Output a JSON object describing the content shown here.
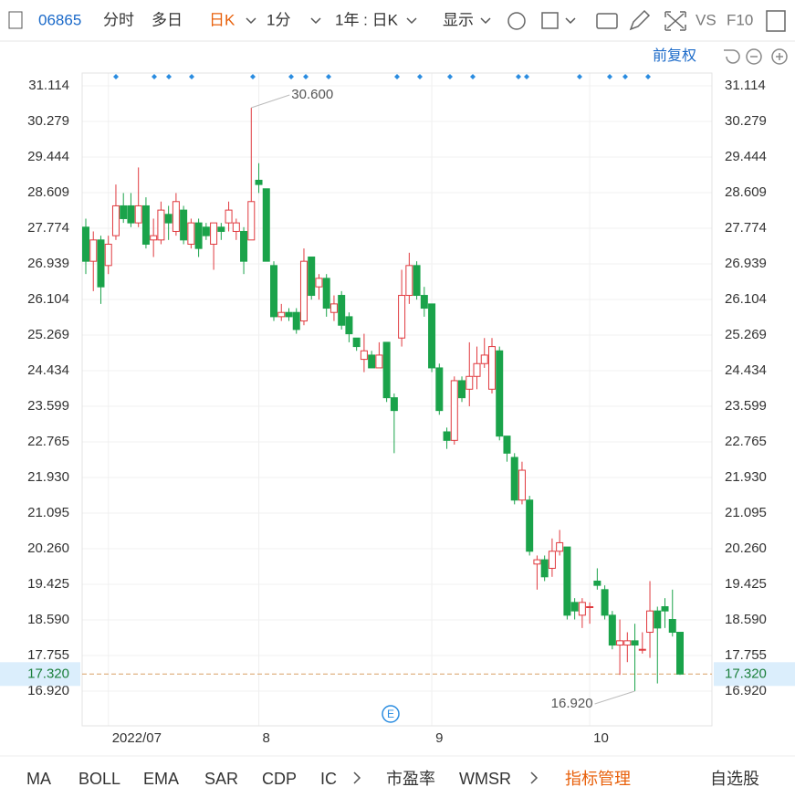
{
  "toolbar": {
    "code": "06865",
    "items": [
      "分时",
      "多日",
      "日K",
      "1分",
      "1年 : 日K",
      "显示",
      "VS",
      "F10"
    ],
    "adjust": "前复权"
  },
  "indicators": [
    "MA",
    "BOLL",
    "EMA",
    "SAR",
    "CDP",
    "IC",
    "市盈率",
    "WMSR",
    "指标管理",
    "自选股"
  ],
  "chart_data": {
    "type": "candlestick",
    "categories": [
      null,
      null,
      null,
      "2022/07",
      null,
      null,
      null,
      null,
      null,
      null,
      null,
      null,
      null,
      null,
      null,
      null,
      null,
      null,
      null,
      null,
      null,
      null,
      null,
      "8",
      null,
      null,
      null,
      null,
      null,
      null,
      null,
      null,
      null,
      null,
      null,
      null,
      null,
      null,
      null,
      null,
      null,
      null,
      null,
      null,
      null,
      null,
      "9",
      null,
      null,
      null,
      null,
      null,
      null,
      null,
      null,
      null,
      null,
      null,
      null,
      null,
      null,
      null,
      null,
      null,
      null,
      null,
      null,
      "10",
      null,
      null,
      null,
      null,
      null,
      null,
      null,
      null,
      null,
      null,
      null,
      null
    ],
    "open": [
      27.8,
      27.0,
      27.5,
      26.9,
      27.6,
      28.3,
      28.3,
      27.9,
      28.3,
      27.5,
      27.5,
      28.1,
      27.7,
      28.2,
      27.4,
      27.9,
      27.8,
      27.4,
      27.8,
      27.9,
      27.7,
      27.7,
      27.5,
      28.9,
      28.7,
      26.9,
      25.7,
      25.8,
      25.8,
      25.6,
      27.1,
      26.4,
      26.6,
      25.8,
      26.2,
      25.7,
      25.2,
      24.7,
      24.8,
      24.5,
      25.1,
      23.8,
      25.2,
      26.2,
      26.9,
      26.2,
      26.0,
      24.5,
      23.0,
      22.8,
      24.2,
      24.0,
      24.3,
      24.6,
      24.0,
      24.9,
      22.9,
      22.4,
      21.4,
      21.4,
      19.9,
      20.0,
      19.8,
      20.2,
      20.3,
      19.0,
      18.7,
      18.9,
      19.5,
      19.3,
      18.7,
      18.0,
      18.0,
      18.1,
      17.9,
      18.3,
      18.8,
      18.9,
      18.6,
      18.3
    ],
    "high": [
      28.0,
      27.7,
      27.6,
      27.6,
      28.8,
      28.6,
      28.6,
      29.2,
      28.5,
      28.0,
      28.4,
      28.3,
      28.6,
      28.3,
      28.0,
      28.0,
      27.9,
      27.9,
      27.9,
      28.4,
      28.0,
      27.8,
      30.6,
      29.3,
      28.7,
      27.0,
      26.0,
      25.9,
      25.9,
      27.3,
      27.1,
      26.7,
      26.7,
      26.2,
      26.3,
      25.8,
      25.2,
      25.3,
      24.9,
      25.1,
      25.1,
      23.9,
      26.8,
      27.2,
      27.0,
      26.4,
      26.0,
      24.6,
      23.1,
      24.3,
      24.3,
      25.1,
      25.0,
      25.2,
      25.2,
      25.0,
      22.9,
      22.5,
      22.3,
      21.5,
      20.1,
      20.1,
      20.5,
      20.7,
      20.3,
      19.1,
      19.1,
      19.0,
      19.8,
      19.4,
      18.8,
      18.6,
      18.3,
      18.5,
      18.3,
      19.5,
      18.9,
      19.1,
      19.3,
      18.3
    ],
    "low": [
      26.7,
      26.3,
      26.0,
      26.7,
      27.5,
      27.9,
      27.8,
      27.8,
      27.3,
      27.1,
      27.4,
      27.5,
      27.6,
      27.4,
      27.3,
      27.1,
      27.5,
      26.8,
      27.5,
      27.7,
      27.5,
      26.7,
      27.5,
      28.6,
      27.0,
      25.6,
      25.6,
      25.6,
      25.3,
      25.5,
      26.1,
      26.1,
      25.7,
      25.6,
      25.4,
      25.1,
      24.9,
      24.4,
      24.5,
      24.5,
      23.7,
      22.5,
      25.0,
      26.0,
      26.1,
      25.7,
      24.4,
      23.4,
      22.6,
      22.7,
      23.7,
      23.6,
      24.0,
      24.5,
      23.9,
      22.8,
      22.3,
      21.3,
      21.3,
      20.1,
      19.3,
      19.5,
      19.6,
      20.1,
      18.6,
      18.6,
      18.4,
      18.5,
      19.3,
      18.6,
      17.9,
      17.3,
      17.6,
      16.92,
      17.8,
      17.7,
      17.1,
      18.4,
      18.2,
      17.3
    ],
    "close": [
      27.0,
      27.5,
      26.4,
      27.4,
      28.3,
      28.0,
      27.9,
      28.3,
      27.4,
      27.6,
      28.2,
      27.9,
      28.4,
      27.5,
      27.9,
      27.3,
      27.6,
      27.9,
      27.7,
      28.2,
      27.9,
      27.0,
      28.4,
      28.8,
      27.0,
      25.7,
      25.8,
      25.7,
      25.4,
      27.0,
      26.2,
      26.6,
      25.9,
      26.0,
      25.5,
      25.3,
      25.0,
      24.9,
      24.5,
      24.8,
      23.8,
      23.5,
      26.2,
      26.9,
      26.2,
      25.9,
      24.5,
      23.5,
      22.8,
      24.2,
      23.8,
      24.3,
      24.6,
      24.8,
      25.0,
      22.9,
      22.5,
      21.4,
      22.1,
      20.2,
      20.0,
      19.6,
      20.2,
      20.4,
      18.7,
      18.8,
      19.0,
      18.9,
      19.4,
      18.7,
      18.0,
      18.1,
      18.1,
      18.0,
      17.9,
      18.8,
      18.4,
      18.8,
      18.3,
      17.32
    ],
    "up_color": "#e0393e",
    "down_color": "#1aa34a",
    "ylim": [
      16.106,
      31.414
    ],
    "yticks": [
      {
        "value": 31.114,
        "label": "31.114"
      },
      {
        "value": 30.279,
        "label": "30.279"
      },
      {
        "value": 29.444,
        "label": "29.444"
      },
      {
        "value": 28.609,
        "label": "28.609"
      },
      {
        "value": 27.774,
        "label": "27.774"
      },
      {
        "value": 26.939,
        "label": "26.939"
      },
      {
        "value": 26.104,
        "label": "26.104"
      },
      {
        "value": 25.269,
        "label": "25.269"
      },
      {
        "value": 24.434,
        "label": "24.434"
      },
      {
        "value": 23.599,
        "label": "23.599"
      },
      {
        "value": 22.765,
        "label": "22.765"
      },
      {
        "value": 21.93,
        "label": "21.930"
      },
      {
        "value": 21.095,
        "label": "21.095"
      },
      {
        "value": 20.26,
        "label": "20.260"
      },
      {
        "value": 19.425,
        "label": "19.425"
      },
      {
        "value": 18.59,
        "label": "18.590"
      },
      {
        "value": 17.755,
        "label": "17.755"
      },
      {
        "value": 16.92,
        "label": "16.920"
      }
    ],
    "grid": true,
    "last_price": {
      "value": 17.32,
      "label": "17.320"
    },
    "annotations": [
      {
        "index": 22,
        "value": 30.6,
        "label": "30.600"
      },
      {
        "index": 73,
        "value": 16.92,
        "label": "16.920"
      }
    ]
  }
}
